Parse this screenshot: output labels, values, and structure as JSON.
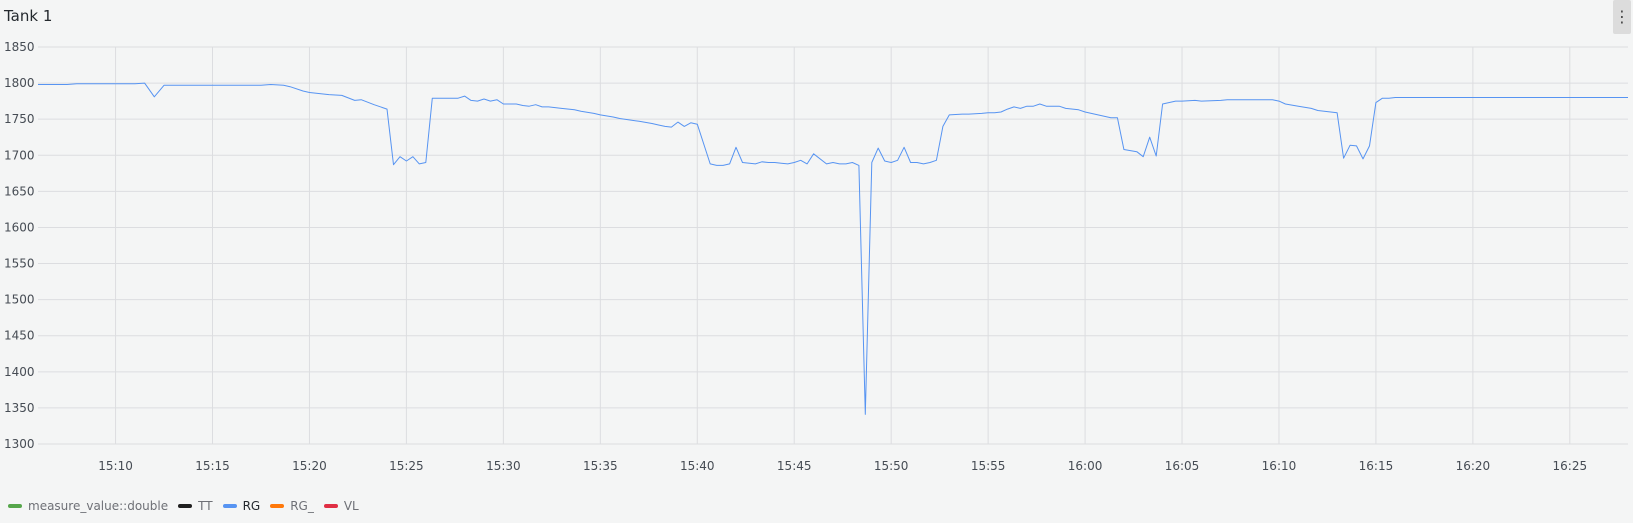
{
  "panel": {
    "title": "Tank 1",
    "menu_icon": "more-vertical-icon"
  },
  "colors": {
    "RG": "#5794f2",
    "grid": "#dcdde0",
    "axis_text": "#464c54"
  },
  "legend": [
    {
      "label": "measure_value::double",
      "color": "#56a64b",
      "active": false
    },
    {
      "label": "TT",
      "color": "#1f1f1f",
      "active": false
    },
    {
      "label": "RG",
      "color": "#5794f2",
      "active": true
    },
    {
      "label": "RG_",
      "color": "#ff780a",
      "active": false
    },
    {
      "label": "VL",
      "color": "#e02f44",
      "active": false
    }
  ],
  "chart_data": {
    "type": "line",
    "title": "Tank 1",
    "xlabel": "",
    "ylabel": "",
    "xlim": [
      "15:06",
      "16:28"
    ],
    "ylim": [
      1300,
      1850
    ],
    "yticks": [
      1300,
      1350,
      1400,
      1450,
      1500,
      1550,
      1600,
      1650,
      1700,
      1750,
      1800,
      1850
    ],
    "xticks": [
      "15:10",
      "15:15",
      "15:20",
      "15:25",
      "15:30",
      "15:35",
      "15:40",
      "15:45",
      "15:50",
      "15:55",
      "16:00",
      "16:05",
      "16:10",
      "16:15",
      "16:20",
      "16:25"
    ],
    "grid": true,
    "legend_position": "bottom-left",
    "series": [
      {
        "name": "RG",
        "x": [
          "15:06:00",
          "15:07:30",
          "15:08:00",
          "15:10:00",
          "15:11:00",
          "15:11:30",
          "15:12:00",
          "15:12:30",
          "15:15:00",
          "15:17:00",
          "15:17:30",
          "15:18:00",
          "15:18:40",
          "15:19:00",
          "15:19:40",
          "15:20:00",
          "15:21:00",
          "15:21:40",
          "15:22:20",
          "15:22:40",
          "15:23:20",
          "15:24:00",
          "15:24:20",
          "15:24:40",
          "15:25:00",
          "15:25:20",
          "15:25:40",
          "15:26:00",
          "15:26:20",
          "15:27:00",
          "15:27:40",
          "15:28:00",
          "15:28:20",
          "15:28:40",
          "15:29:00",
          "15:29:20",
          "15:29:40",
          "15:30:00",
          "15:30:40",
          "15:31:00",
          "15:31:20",
          "15:31:40",
          "15:32:00",
          "15:32:20",
          "15:32:40",
          "15:33:00",
          "15:33:40",
          "15:34:00",
          "15:34:40",
          "15:35:00",
          "15:35:40",
          "15:36:00",
          "15:37:00",
          "15:37:40",
          "15:38:00",
          "15:38:20",
          "15:38:40",
          "15:39:00",
          "15:39:20",
          "15:39:40",
          "15:40:00",
          "15:40:40",
          "15:41:00",
          "15:41:20",
          "15:41:40",
          "15:42:00",
          "15:42:20",
          "15:43:00",
          "15:43:20",
          "15:43:40",
          "15:44:00",
          "15:44:20",
          "15:44:40",
          "15:45:00",
          "15:45:20",
          "15:45:40",
          "15:46:00",
          "15:46:40",
          "15:47:00",
          "15:47:20",
          "15:47:40",
          "15:48:00",
          "15:48:20",
          "15:48:40",
          "15:49:00",
          "15:49:20",
          "15:49:40",
          "15:50:00",
          "15:50:20",
          "15:50:40",
          "15:51:00",
          "15:51:20",
          "15:51:40",
          "15:52:00",
          "15:52:20",
          "15:52:40",
          "15:53:00",
          "15:53:40",
          "15:54:00",
          "15:54:40",
          "15:55:00",
          "15:55:20",
          "15:55:40",
          "15:56:00",
          "15:56:20",
          "15:56:40",
          "15:57:00",
          "15:57:20",
          "15:57:40",
          "15:58:00",
          "15:58:40",
          "15:59:00",
          "15:59:40",
          "16:00:00",
          "16:00:40",
          "16:01:20",
          "16:01:40",
          "16:02:00",
          "16:02:40",
          "16:03:00",
          "16:03:20",
          "16:03:40",
          "16:04:00",
          "16:04:40",
          "16:05:00",
          "16:05:40",
          "16:06:00",
          "16:07:00",
          "16:07:20",
          "16:08:00",
          "16:09:00",
          "16:09:40",
          "16:10:00",
          "16:10:20",
          "16:11:00",
          "16:11:40",
          "16:12:00",
          "16:12:40",
          "16:13:00",
          "16:13:20",
          "16:13:40",
          "16:14:00",
          "16:14:20",
          "16:14:40",
          "16:15:00",
          "16:15:20",
          "16:15:40",
          "16:16:00",
          "16:17:00",
          "16:20:00",
          "16:25:00",
          "16:28:00"
        ],
        "y": [
          1798,
          1798,
          1799,
          1799,
          1799,
          1800,
          1781,
          1797,
          1797,
          1797,
          1797,
          1798,
          1797,
          1795,
          1789,
          1787,
          1784,
          1783,
          1776,
          1777,
          1770,
          1764,
          1687,
          1698,
          1692,
          1698,
          1688,
          1690,
          1779,
          1779,
          1779,
          1782,
          1776,
          1775,
          1778,
          1775,
          1777,
          1771,
          1771,
          1769,
          1768,
          1770,
          1767,
          1767,
          1766,
          1765,
          1763,
          1761,
          1758,
          1756,
          1753,
          1751,
          1747,
          1744,
          1742,
          1740,
          1739,
          1746,
          1740,
          1745,
          1743,
          1688,
          1686,
          1686,
          1688,
          1711,
          1690,
          1688,
          1691,
          1690,
          1690,
          1689,
          1688,
          1690,
          1693,
          1688,
          1702,
          1688,
          1690,
          1688,
          1688,
          1690,
          1686,
          1341,
          1690,
          1710,
          1692,
          1690,
          1693,
          1711,
          1690,
          1690,
          1688,
          1690,
          1693,
          1740,
          1756,
          1757,
          1757,
          1758,
          1759,
          1759,
          1760,
          1764,
          1767,
          1765,
          1768,
          1768,
          1771,
          1768,
          1768,
          1765,
          1763,
          1760,
          1756,
          1752,
          1752,
          1708,
          1705,
          1698,
          1725,
          1699,
          1771,
          1775,
          1775,
          1776,
          1775,
          1776,
          1777,
          1777,
          1777,
          1777,
          1775,
          1771,
          1768,
          1765,
          1762,
          1760,
          1759,
          1696,
          1714,
          1713,
          1695,
          1713,
          1773,
          1779,
          1779,
          1780,
          1780,
          1780,
          1780,
          1780
        ]
      }
    ]
  }
}
